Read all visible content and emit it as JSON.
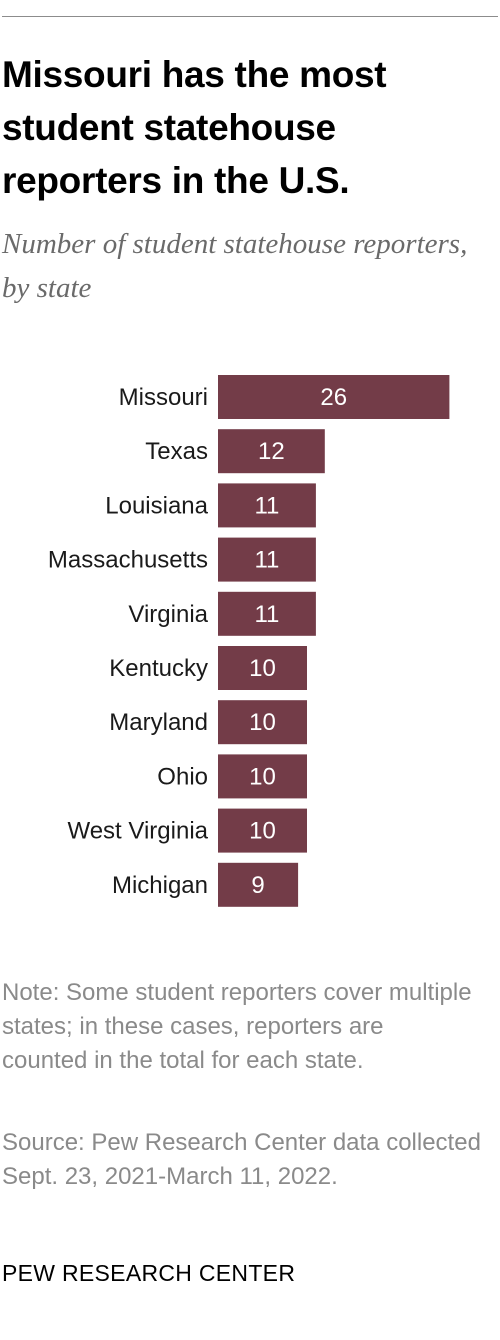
{
  "header": {
    "title": "Missouri has the most student statehouse reporters in the U.S.",
    "subtitle": "Number of student statehouse reporters, by state"
  },
  "chart_data": {
    "type": "bar",
    "orientation": "horizontal",
    "title": "Missouri has the most student statehouse reporters in the U.S.",
    "subtitle": "Number of student statehouse reporters, by state",
    "categories": [
      "Missouri",
      "Texas",
      "Louisiana",
      "Massachusetts",
      "Virginia",
      "Kentucky",
      "Maryland",
      "Ohio",
      "West Virginia",
      "Michigan"
    ],
    "values": [
      26,
      12,
      11,
      11,
      11,
      10,
      10,
      10,
      10,
      9
    ],
    "data_labels": true,
    "xlabel": "",
    "ylabel": "",
    "grid": false,
    "legend": "none",
    "bar_color": "#733c48",
    "label_color": "#ffffff"
  },
  "footer": {
    "note": "Note: Some student reporters cover multiple states; in these cases, reporters are counted in the total for each state.",
    "source": "Source: Pew Research Center data collected Sept. 23, 2021-March 11, 2022.",
    "credit": "PEW RESEARCH CENTER"
  }
}
